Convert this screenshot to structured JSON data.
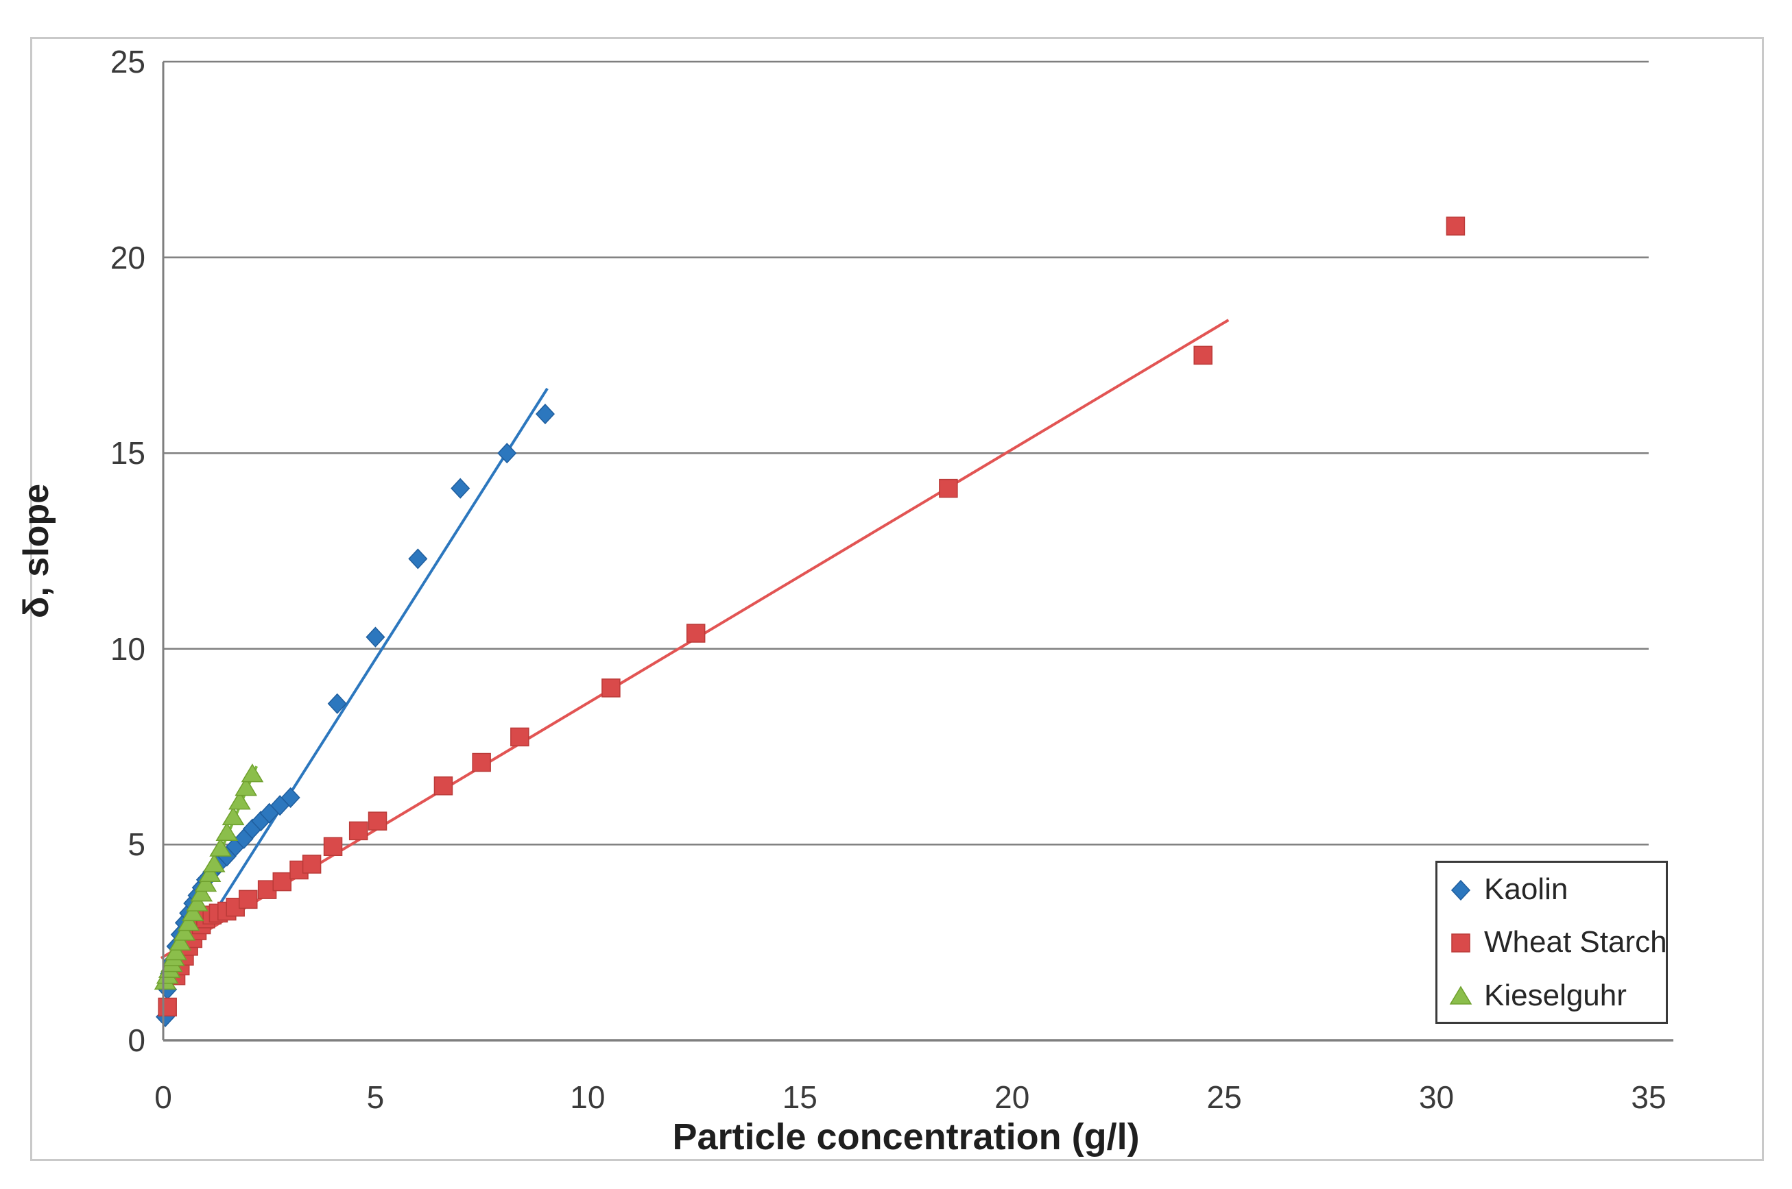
{
  "chart_data": {
    "type": "scatter",
    "title": "",
    "xlabel": "Particle concentration (g/l)",
    "ylabel": "δ, slope",
    "xlim": [
      0,
      35
    ],
    "ylim": [
      0,
      25
    ],
    "xticks": [
      0,
      5,
      10,
      15,
      20,
      25,
      30,
      35
    ],
    "yticks": [
      0,
      5,
      10,
      15,
      20,
      25
    ],
    "grid": "horizontal-only",
    "legend_position": "inside-bottom-right",
    "series": [
      {
        "name": "Kaolin",
        "marker": "diamond",
        "color": "#2c77be",
        "edge_color": "#1f5e9e",
        "line_color": "#2c77be",
        "trendline": {
          "x1": 0.0,
          "y1": 1.2,
          "x2": 9.05,
          "y2": 16.65
        },
        "points": [
          [
            0.05,
            0.6
          ],
          [
            0.1,
            1.3
          ],
          [
            0.15,
            1.7
          ],
          [
            0.2,
            2.0
          ],
          [
            0.3,
            2.4
          ],
          [
            0.4,
            2.7
          ],
          [
            0.5,
            3.0
          ],
          [
            0.6,
            3.25
          ],
          [
            0.7,
            3.5
          ],
          [
            0.8,
            3.7
          ],
          [
            0.9,
            3.9
          ],
          [
            1.0,
            4.1
          ],
          [
            1.15,
            4.3
          ],
          [
            1.3,
            4.5
          ],
          [
            1.5,
            4.7
          ],
          [
            1.7,
            4.95
          ],
          [
            1.9,
            5.15
          ],
          [
            2.1,
            5.4
          ],
          [
            2.3,
            5.6
          ],
          [
            2.5,
            5.8
          ],
          [
            2.75,
            6.0
          ],
          [
            3.0,
            6.2
          ],
          [
            4.1,
            8.6
          ],
          [
            5.0,
            10.3
          ],
          [
            6.0,
            12.3
          ],
          [
            7.0,
            14.1
          ],
          [
            8.1,
            15.0
          ],
          [
            9.0,
            16.0
          ]
        ]
      },
      {
        "name": "Wheat Starch",
        "marker": "square",
        "color": "#d94a4a",
        "edge_color": "#bb3a38",
        "line_color": "#e25453",
        "trendline": {
          "x1": -0.05,
          "y1": 2.1,
          "x2": 25.1,
          "y2": 18.4
        },
        "points": [
          [
            0.1,
            0.85
          ],
          [
            0.3,
            1.65
          ],
          [
            0.4,
            1.9
          ],
          [
            0.5,
            2.15
          ],
          [
            0.6,
            2.4
          ],
          [
            0.7,
            2.6
          ],
          [
            0.8,
            2.8
          ],
          [
            0.9,
            2.95
          ],
          [
            1.0,
            3.1
          ],
          [
            1.15,
            3.2
          ],
          [
            1.3,
            3.25
          ],
          [
            1.5,
            3.3
          ],
          [
            1.7,
            3.4
          ],
          [
            2.0,
            3.6
          ],
          [
            2.45,
            3.85
          ],
          [
            2.8,
            4.05
          ],
          [
            3.2,
            4.35
          ],
          [
            3.5,
            4.5
          ],
          [
            4.0,
            4.95
          ],
          [
            4.6,
            5.35
          ],
          [
            5.05,
            5.6
          ],
          [
            6.6,
            6.5
          ],
          [
            7.5,
            7.1
          ],
          [
            8.4,
            7.75
          ],
          [
            10.55,
            9.0
          ],
          [
            12.55,
            10.4
          ],
          [
            18.5,
            14.1
          ],
          [
            24.5,
            17.5
          ],
          [
            30.45,
            20.8
          ]
        ]
      },
      {
        "name": "Kieselguhr",
        "marker": "triangle",
        "color": "#8bbe4b",
        "edge_color": "#6fa02e",
        "line_color": "#7cb83e",
        "trendline": {
          "x1": 0.02,
          "y1": 1.4,
          "x2": 2.2,
          "y2": 7.0
        },
        "points": [
          [
            0.05,
            1.5
          ],
          [
            0.1,
            1.65
          ],
          [
            0.15,
            1.8
          ],
          [
            0.2,
            1.95
          ],
          [
            0.25,
            2.1
          ],
          [
            0.3,
            2.25
          ],
          [
            0.4,
            2.5
          ],
          [
            0.5,
            2.75
          ],
          [
            0.6,
            3.0
          ],
          [
            0.7,
            3.25
          ],
          [
            0.8,
            3.5
          ],
          [
            0.9,
            3.75
          ],
          [
            1.0,
            4.0
          ],
          [
            1.1,
            4.25
          ],
          [
            1.2,
            4.5
          ],
          [
            1.35,
            4.9
          ],
          [
            1.5,
            5.3
          ],
          [
            1.65,
            5.7
          ],
          [
            1.8,
            6.1
          ],
          [
            1.95,
            6.45
          ],
          [
            2.1,
            6.8
          ]
        ]
      }
    ]
  },
  "colors": {
    "background": "#ffffff",
    "gridline": "#7f7f7f",
    "axis": "#7f7f7f",
    "outer_frame": "#c9c9c9",
    "tick_text": "#3a3a3a",
    "title_text": "#1f1f1f",
    "legend_border": "#3a3a3a"
  }
}
